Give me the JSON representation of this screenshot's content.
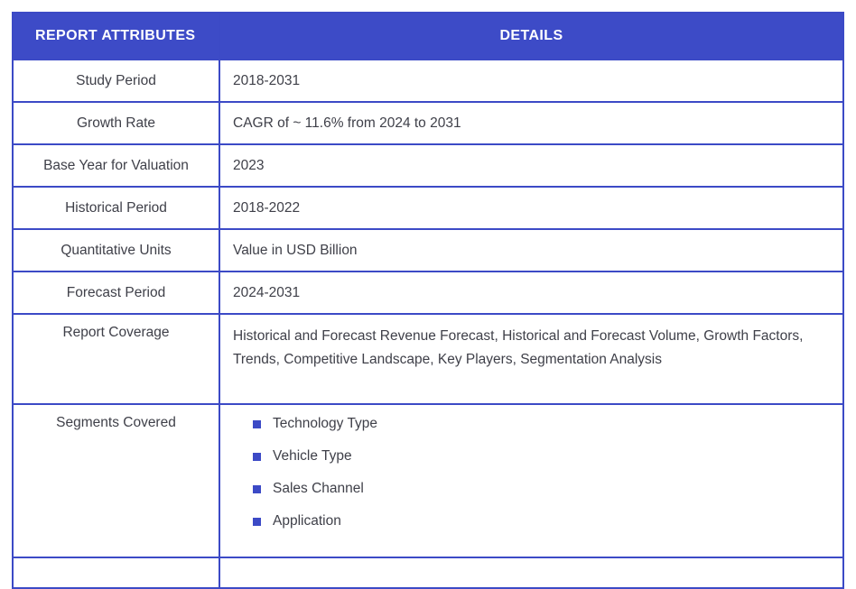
{
  "table": {
    "header": {
      "attributes_label": "REPORT ATTRIBUTES",
      "details_label": "DETAILS"
    },
    "rows": [
      {
        "attribute": "Study Period",
        "detail": "2018-2031"
      },
      {
        "attribute": "Growth Rate",
        "detail": "CAGR of ~ 11.6% from 2024 to 2031"
      },
      {
        "attribute": "Base Year for Valuation",
        "detail": "2023"
      },
      {
        "attribute": "Historical Period",
        "detail": "2018-2022"
      },
      {
        "attribute": "Quantitative Units",
        "detail": "Value in USD Billion"
      },
      {
        "attribute": "Forecast Period",
        "detail": "2024-2031"
      },
      {
        "attribute": "Report Coverage",
        "detail": "Historical and Forecast Revenue Forecast, Historical and Forecast Volume, Growth Factors, Trends, Competitive Landscape, Key Players, Segmentation Analysis"
      },
      {
        "attribute": "Segments Covered",
        "bullets": [
          "Technology Type",
          "Vehicle Type",
          "Sales Channel",
          "Application"
        ]
      }
    ],
    "colors": {
      "accent_blue": "#3c4ac6",
      "header_background": "#3d4bc7",
      "header_text": "#ffffff",
      "body_text": "#3f4049"
    }
  }
}
